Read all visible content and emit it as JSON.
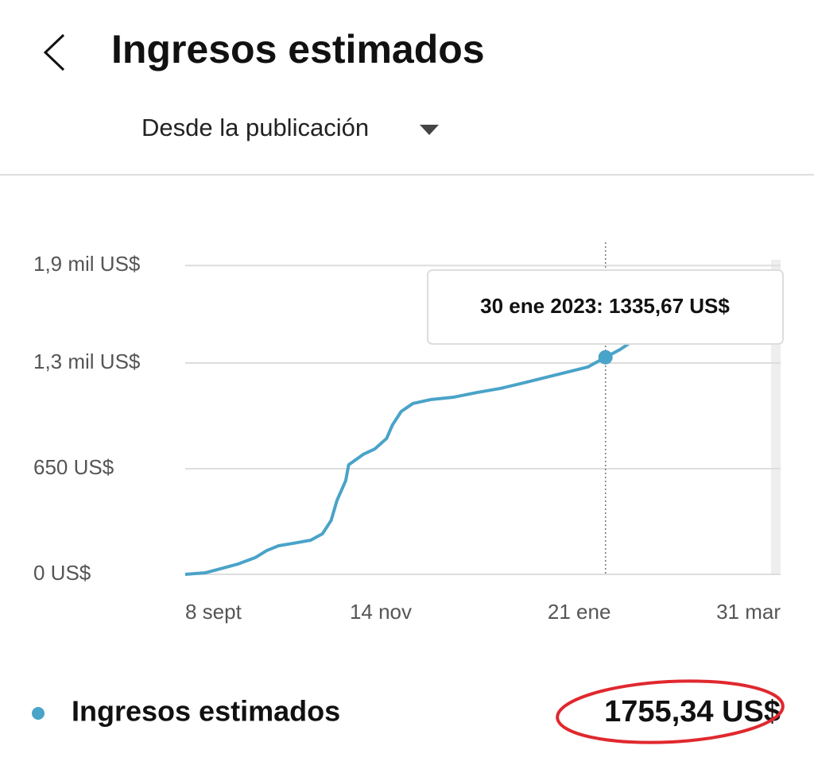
{
  "header": {
    "title": "Ingresos estimados"
  },
  "filter": {
    "label": "Desde la publicación"
  },
  "chart_data": {
    "type": "line",
    "x": [
      0,
      7,
      13,
      18,
      24,
      28,
      32,
      37,
      43,
      47,
      50,
      52,
      55,
      56,
      61,
      65,
      69,
      71,
      74,
      78,
      84,
      92,
      100,
      108,
      116,
      127,
      138,
      144,
      149,
      153
    ],
    "series": [
      {
        "name": "Ingresos estimados",
        "color": "#4aa3c8",
        "values": [
          0,
          10,
          39,
          63,
          103,
          147,
          176,
          191,
          210,
          249,
          332,
          455,
          577,
          674,
          738,
          772,
          836,
          919,
          1002,
          1051,
          1075,
          1090,
          1119,
          1144,
          1178,
          1227,
          1276,
          1335.67,
          1383,
          1432
        ]
      }
    ],
    "xlim": [
      0,
      204
    ],
    "xticks": [
      {
        "value": 0,
        "label": "8 sept"
      },
      {
        "value": 67,
        "label": "14 nov"
      },
      {
        "value": 135,
        "label": "21 ene"
      },
      {
        "value": 204,
        "label": "31 mar"
      }
    ],
    "ylim": [
      0,
      1950
    ],
    "yticks": [
      {
        "value": 0,
        "label": "0 US$"
      },
      {
        "value": 650,
        "label": "650 US$"
      },
      {
        "value": 1300,
        "label": "1,3 mil US$"
      },
      {
        "value": 1900,
        "label": "1,9 mil US$"
      }
    ],
    "grid": true,
    "tooltip": {
      "index": 27,
      "text": "30 ene 2023: 1335,67 US$"
    }
  },
  "footer": {
    "total": "1755,34 US$"
  }
}
